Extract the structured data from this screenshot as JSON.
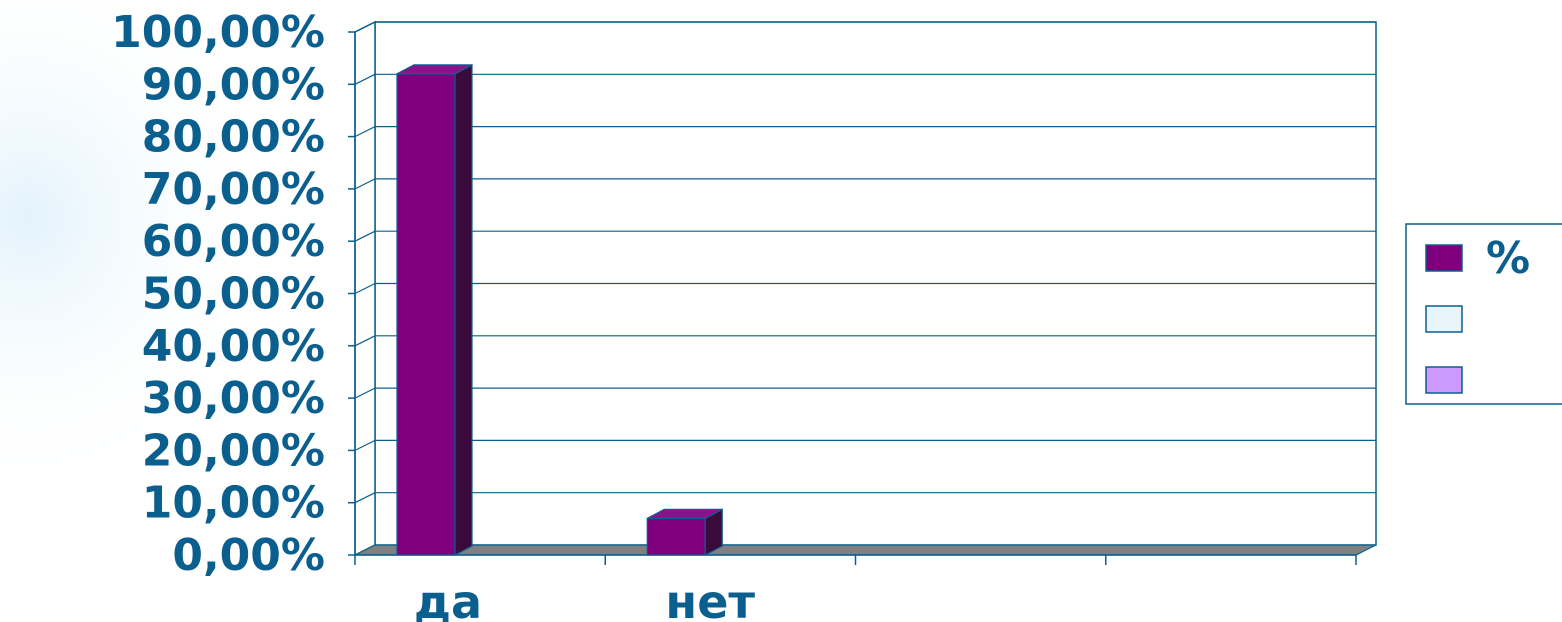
{
  "chart_data": {
    "type": "bar",
    "categories": [
      "да",
      "нет",
      "",
      ""
    ],
    "series": [
      {
        "name": "%",
        "values": [
          0.92,
          0.07,
          null,
          null
        ]
      },
      {
        "name": "",
        "values": [
          null,
          null,
          null,
          null
        ]
      },
      {
        "name": "",
        "values": [
          null,
          null,
          null,
          null
        ]
      }
    ],
    "ylim": [
      0,
      1
    ],
    "yticks": [
      "0,00%",
      "10,00%",
      "20,00%",
      "30,00%",
      "40,00%",
      "50,00%",
      "60,00%",
      "70,00%",
      "80,00%",
      "90,00%",
      "100,00%"
    ],
    "grid": true,
    "legend_position": "right",
    "three_d": true
  },
  "colors": {
    "series": [
      "#7f007f",
      "#e8f6fc",
      "#cc99ff"
    ],
    "series_side": [
      "#3a0a3a",
      "#e8f6fc",
      "#cc99ff"
    ],
    "series_top": [
      "#8c128c",
      "#e8f6fc",
      "#cc99ff"
    ],
    "text": "#0b5f8f",
    "grid": "#0b5f8f",
    "floor": "#808080",
    "frame": "#0b5f8f"
  }
}
